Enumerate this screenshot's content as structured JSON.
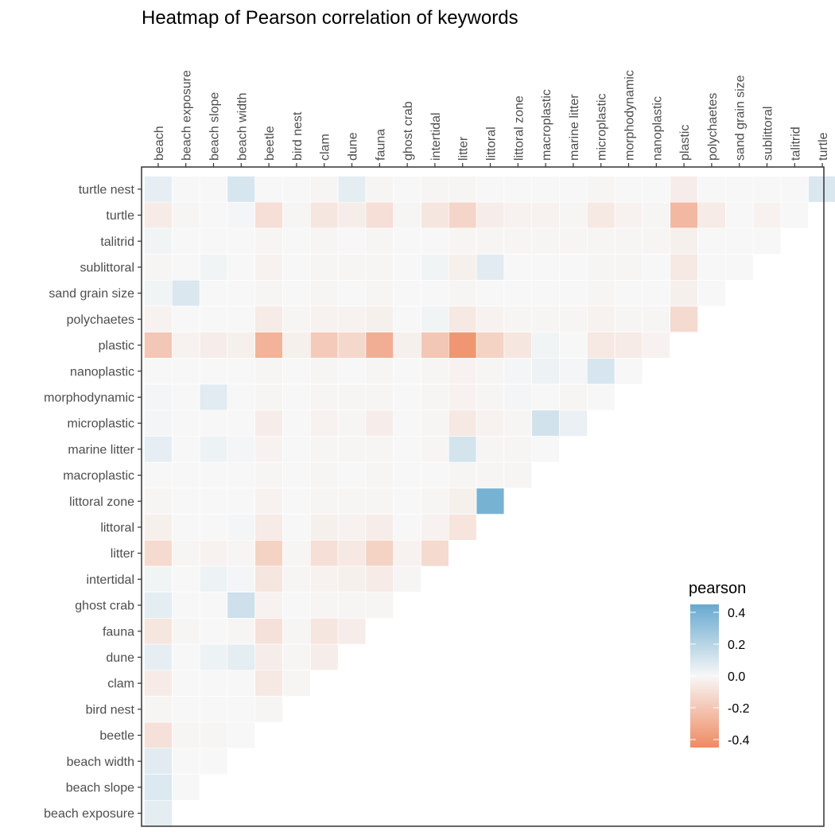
{
  "chart_data": {
    "type": "heatmap",
    "title": "Heatmap of Pearson correlation of keywords",
    "x_labels": [
      "beach",
      "beach exposure",
      "beach slope",
      "beach width",
      "beetle",
      "bird nest",
      "clam",
      "dune",
      "fauna",
      "ghost crab",
      "intertidal",
      "litter",
      "littoral",
      "littoral zone",
      "macroplastic",
      "marine litter",
      "microplastic",
      "morphodynamic",
      "nanoplastic",
      "plastic",
      "polychaetes",
      "sand grain size",
      "sublittoral",
      "talitrid",
      "turtle"
    ],
    "y_labels": [
      "turtle nest",
      "turtle",
      "talitrid",
      "sublittoral",
      "sand grain size",
      "polychaetes",
      "plastic",
      "nanoplastic",
      "morphodynamic",
      "microplastic",
      "marine litter",
      "macroplastic",
      "littoral zone",
      "littoral",
      "litter",
      "intertidal",
      "ghost crab",
      "fauna",
      "dune",
      "clam",
      "bird nest",
      "beetle",
      "beach width",
      "beach slope",
      "beach exposure"
    ],
    "values": [
      [
        0.05,
        0,
        0,
        0.1,
        0,
        0,
        -0.01,
        0.06,
        -0.01,
        0,
        -0.01,
        -0.01,
        0,
        0,
        0,
        0,
        -0.01,
        0,
        0,
        -0.04,
        0,
        0,
        0,
        0,
        0.09
      ],
      [
        -0.05,
        -0.01,
        0,
        0.01,
        -0.1,
        -0.01,
        -0.07,
        -0.04,
        -0.1,
        -0.01,
        -0.07,
        -0.14,
        -0.04,
        -0.02,
        -0.02,
        -0.01,
        -0.06,
        -0.02,
        -0.01,
        -0.26,
        -0.05,
        0,
        -0.02,
        0
      ],
      [
        0.02,
        0,
        0,
        0,
        -0.01,
        0,
        -0.01,
        0,
        -0.01,
        0,
        0,
        -0.01,
        -0.01,
        -0.01,
        -0.01,
        -0.01,
        -0.01,
        -0.01,
        -0.01,
        -0.03,
        0,
        0,
        0
      ],
      [
        -0.01,
        0,
        0.02,
        0,
        -0.02,
        0,
        -0.01,
        -0.01,
        -0.01,
        0,
        0.02,
        -0.03,
        0.07,
        0,
        0,
        0,
        -0.01,
        -0.01,
        0,
        -0.06,
        0,
        0
      ],
      [
        0.02,
        0.09,
        0,
        0,
        -0.01,
        0,
        -0.01,
        0,
        -0.01,
        0,
        0,
        -0.01,
        0,
        0,
        0,
        0,
        -0.01,
        0,
        0,
        -0.03,
        0
      ],
      [
        -0.02,
        0,
        0,
        0,
        -0.05,
        -0.01,
        -0.02,
        -0.02,
        -0.03,
        0,
        0.02,
        -0.06,
        -0.02,
        -0.01,
        -0.01,
        -0.01,
        -0.02,
        -0.01,
        -0.01,
        -0.12
      ],
      [
        -0.2,
        -0.02,
        -0.04,
        -0.03,
        -0.28,
        -0.03,
        -0.18,
        -0.13,
        -0.3,
        -0.03,
        -0.2,
        -0.4,
        -0.15,
        -0.07,
        0.02,
        0,
        -0.06,
        -0.05,
        -0.02
      ],
      [
        0,
        0,
        0,
        0,
        -0.01,
        0,
        -0.01,
        0,
        -0.01,
        0,
        -0.01,
        -0.02,
        -0.01,
        0.01,
        0.03,
        0.01,
        0.1,
        0
      ],
      [
        0.01,
        0,
        0.07,
        0,
        -0.01,
        0,
        -0.01,
        -0.01,
        -0.01,
        0,
        -0.01,
        -0.02,
        -0.01,
        0.01,
        0,
        -0.01,
        0
      ],
      [
        0.01,
        0,
        0,
        0,
        -0.04,
        0,
        -0.02,
        -0.01,
        -0.04,
        0,
        -0.01,
        -0.06,
        -0.02,
        -0.01,
        0.12,
        0.04
      ],
      [
        0.05,
        0,
        0.03,
        0.01,
        -0.02,
        0,
        -0.01,
        -0.01,
        -0.01,
        0,
        -0.01,
        0.11,
        -0.01,
        -0.01,
        0
      ],
      [
        0,
        0,
        0,
        0,
        -0.01,
        0,
        -0.01,
        0,
        -0.01,
        0,
        0,
        -0.01,
        -0.01,
        -0.01
      ],
      [
        -0.01,
        0,
        0,
        0,
        -0.02,
        0,
        -0.01,
        -0.01,
        -0.01,
        0,
        -0.01,
        -0.03,
        0.4
      ],
      [
        -0.03,
        0,
        0,
        0.01,
        -0.05,
        0,
        -0.03,
        -0.02,
        -0.04,
        0,
        -0.02,
        -0.08
      ],
      [
        -0.12,
        -0.01,
        -0.02,
        -0.01,
        -0.15,
        -0.01,
        -0.1,
        -0.06,
        -0.15,
        -0.02,
        -0.12
      ],
      [
        0.02,
        0,
        0.03,
        0.01,
        -0.07,
        -0.01,
        -0.02,
        -0.03,
        -0.05,
        -0.01
      ],
      [
        0.06,
        0,
        0,
        0.13,
        -0.02,
        0,
        -0.01,
        -0.01,
        -0.01
      ],
      [
        -0.07,
        -0.01,
        0,
        -0.01,
        -0.09,
        -0.01,
        -0.07,
        -0.04
      ],
      [
        0.05,
        0,
        0.03,
        0.06,
        -0.04,
        -0.01,
        -0.04
      ],
      [
        -0.05,
        0,
        0,
        0,
        -0.06,
        -0.01
      ],
      [
        -0.01,
        0,
        0,
        0,
        -0.01
      ],
      [
        -0.09,
        -0.01,
        -0.01,
        0
      ],
      [
        0.07,
        0,
        0
      ],
      [
        0.08,
        0
      ],
      [
        0.06
      ]
    ],
    "legend": {
      "title": "pearson",
      "ticks": [
        0.4,
        0.2,
        0.0,
        -0.2,
        -0.4
      ],
      "tick_labels": [
        "0.4",
        "0.2",
        "0.0",
        "-0.2",
        "-0.4"
      ],
      "range": [
        -0.45,
        0.45
      ],
      "position": "bottom-right inside",
      "low_color": "#ef8a62",
      "mid_color": "#f7f7f7",
      "high_color": "#67a9cf"
    },
    "grid": false
  }
}
